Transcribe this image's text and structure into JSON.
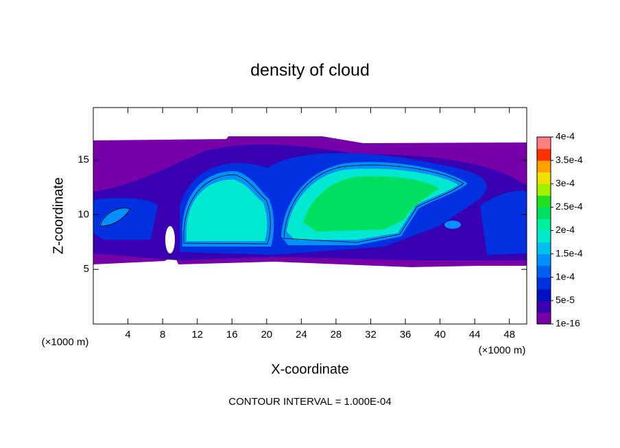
{
  "chart_data": {
    "type": "contour",
    "title": "density of cloud",
    "x_label": "X-coordinate",
    "y_label": "Z-coordinate",
    "x_unit": "(×1000 m)",
    "note": "CONTOUR INTERVAL = 1.000E-04",
    "xlim": [
      0,
      50
    ],
    "xticks": [
      4,
      8,
      12,
      16,
      20,
      24,
      28,
      32,
      36,
      40,
      44,
      48
    ],
    "ylim": [
      0,
      19.8
    ],
    "yticks": [
      5,
      10,
      15
    ],
    "colorbar": {
      "ticks": [
        {
          "value": 1e-16,
          "label": "1e-16"
        },
        {
          "value": 5e-05,
          "label": "5e-5"
        },
        {
          "value": 0.0001,
          "label": "1e-4"
        },
        {
          "value": 0.00015,
          "label": "1.5e-4"
        },
        {
          "value": 0.0002,
          "label": "2e-4"
        },
        {
          "value": 0.00025,
          "label": "2.5e-4"
        },
        {
          "value": 0.0003,
          "label": "3e-4"
        },
        {
          "value": 0.00035,
          "label": "3.5e-4"
        },
        {
          "value": 0.0004,
          "label": "4e-4"
        }
      ],
      "colors": [
        "#7800a8",
        "#3800b0",
        "#0010c0",
        "#0030e0",
        "#0060f0",
        "#0090ff",
        "#00c0f0",
        "#00e8d0",
        "#00f0a0",
        "#00e060",
        "#20e020",
        "#a0f000",
        "#f0e000",
        "#ffa000",
        "#ff3000",
        "#ff8080"
      ]
    }
  }
}
